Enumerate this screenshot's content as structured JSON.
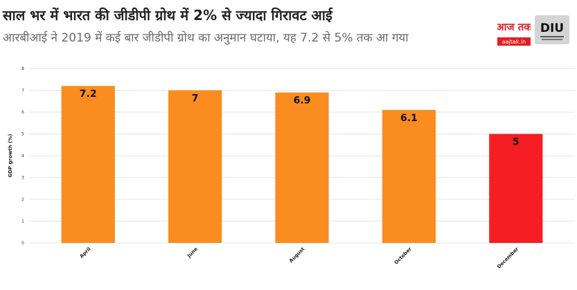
{
  "header": {
    "title": "साल भर में भारत की जीडीपी ग्रोथ में 2% से ज्यादा गिरावट आई",
    "subtitle": "आरबीआई ने 2019 में कई बार जीडीपी ग्रोथ का अनुमान घटाया, यह 7.2 से 5% तक आ गया"
  },
  "logos": {
    "aajtak_main": "आज तक",
    "aajtak_domain": "aajtak.in",
    "diu": "DIU"
  },
  "colors": {
    "bar": "#fb8c1f",
    "highlight": "#f61e22",
    "grid": "#e6e6e6",
    "brand_red": "#e31e24"
  },
  "chart_data": {
    "type": "bar",
    "categories": [
      "April",
      "June",
      "August",
      "October",
      "December"
    ],
    "values": [
      7.2,
      7,
      6.9,
      6.1,
      5
    ],
    "value_labels": [
      "7.2",
      "7",
      "6.9",
      "6.1",
      "5"
    ],
    "highlight_index": 4,
    "ylabel": "GDP growth (%)",
    "xlabel": "",
    "ylim": [
      0,
      8
    ],
    "yticks": [
      "0",
      "1",
      "2",
      "3",
      "4",
      "5",
      "6",
      "7",
      "8"
    ],
    "grid": true
  }
}
